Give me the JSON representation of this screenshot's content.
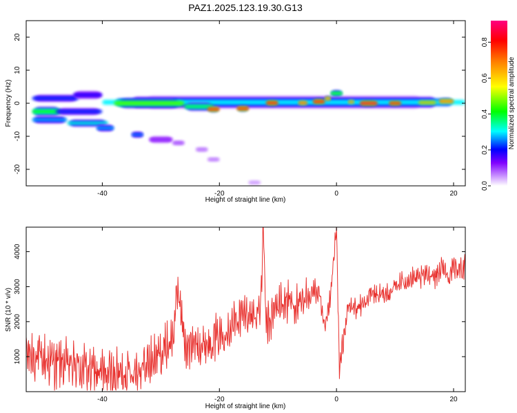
{
  "figure": {
    "title": "PAZ1.2025.123.19.30.G13"
  },
  "chart_data": [
    {
      "type": "heatmap",
      "title": "PAZ1.2025.123.19.30.G13",
      "xlabel": "Height of straight line (km)",
      "ylabel": "Frequency (Hz)",
      "xlim": [
        -53,
        22
      ],
      "ylim": [
        -25,
        25
      ],
      "x_ticks": [
        "-40",
        "-20",
        "0",
        "20"
      ],
      "x_tick_values": [
        -40,
        -20,
        0,
        20
      ],
      "y_ticks": [
        "20",
        "10",
        "0",
        "-10",
        "-20"
      ],
      "y_tick_values": [
        20,
        10,
        0,
        -10,
        -20
      ],
      "colorbar": {
        "label": "Normalized spectral amplitude",
        "range": [
          0,
          0.92
        ],
        "ticks": [
          "0.0",
          "0.2",
          "0.4",
          "0.6",
          "0.8"
        ],
        "tick_values": [
          0.0,
          0.2,
          0.4,
          0.6,
          0.8
        ],
        "colormap": [
          "#ffffff",
          "#8000ff",
          "#0000ff",
          "#00ffff",
          "#00ff00",
          "#ffff00",
          "#ff8000",
          "#ff0000",
          "#ff0080"
        ]
      },
      "blobs": [
        {
          "x0": -40,
          "x1": 22,
          "y": 0.3,
          "h": 1.8,
          "a": 0.3
        },
        {
          "x0": -38,
          "x1": -26,
          "y": 0.0,
          "h": 1.4,
          "a": 0.45
        },
        {
          "x0": -26,
          "x1": -21,
          "y": -1.0,
          "h": 1.2,
          "a": 0.38
        },
        {
          "x0": -22,
          "x1": -20,
          "y": -1.8,
          "h": 0.8,
          "a": 0.8
        },
        {
          "x0": -17,
          "x1": -15,
          "y": -1.6,
          "h": 0.8,
          "a": 0.8
        },
        {
          "x0": -12,
          "x1": -10,
          "y": 0.1,
          "h": 0.8,
          "a": 0.82
        },
        {
          "x0": -6.5,
          "x1": -5.0,
          "y": 0.1,
          "h": 0.7,
          "a": 0.75
        },
        {
          "x0": -4.0,
          "x1": -2.0,
          "y": 0.5,
          "h": 0.8,
          "a": 0.82
        },
        {
          "x0": -2.0,
          "x1": -1.0,
          "y": 1.4,
          "h": 0.7,
          "a": 0.7
        },
        {
          "x0": 2.0,
          "x1": 3.0,
          "y": 0.4,
          "h": 0.6,
          "a": 0.7
        },
        {
          "x0": 4.0,
          "x1": 7.0,
          "y": 0.0,
          "h": 0.8,
          "a": 0.85
        },
        {
          "x0": 9.0,
          "x1": 11.0,
          "y": 0.0,
          "h": 0.7,
          "a": 0.82
        },
        {
          "x0": 14.0,
          "x1": 17.0,
          "y": 0.2,
          "h": 0.7,
          "a": 0.62
        },
        {
          "x0": 17.5,
          "x1": 20.0,
          "y": 0.6,
          "h": 0.8,
          "a": 0.72
        },
        {
          "x0": -1.0,
          "x1": 1.0,
          "y": 3.0,
          "h": 0.9,
          "a": 0.42
        },
        {
          "x0": -52,
          "x1": -44,
          "y": 1.5,
          "h": 1.0,
          "a": 0.22
        },
        {
          "x0": -52,
          "x1": -47,
          "y": -2.5,
          "h": 1.4,
          "a": 0.4
        },
        {
          "x0": -48,
          "x1": -40,
          "y": -2.5,
          "h": 1.0,
          "a": 0.22
        },
        {
          "x0": -52,
          "x1": -46,
          "y": -5.0,
          "h": 1.0,
          "a": 0.28
        },
        {
          "x0": -46,
          "x1": -39,
          "y": -6.0,
          "h": 1.0,
          "a": 0.32
        },
        {
          "x0": -41,
          "x1": -38,
          "y": -7.5,
          "h": 0.9,
          "a": 0.28
        },
        {
          "x0": -35,
          "x1": -33,
          "y": -9.5,
          "h": 0.8,
          "a": 0.26
        },
        {
          "x0": -45,
          "x1": -40,
          "y": 2.5,
          "h": 1.2,
          "a": 0.18
        },
        {
          "x0": -32,
          "x1": -28,
          "y": -11.0,
          "h": 1.0,
          "a": 0.12
        },
        {
          "x0": -28,
          "x1": -26,
          "y": -12.0,
          "h": 0.6,
          "a": 0.1
        },
        {
          "x0": -24,
          "x1": -22,
          "y": -14.0,
          "h": 0.6,
          "a": 0.08
        },
        {
          "x0": -22,
          "x1": -20,
          "y": -17.0,
          "h": 0.5,
          "a": 0.08
        },
        {
          "x0": -15,
          "x1": -13,
          "y": -24.0,
          "h": 0.5,
          "a": 0.06
        }
      ]
    },
    {
      "type": "line",
      "xlabel": "Height of straight line (km)",
      "ylabel": "SNR (10 * v/v)",
      "xlim": [
        -53,
        22
      ],
      "ylim": [
        0,
        4700
      ],
      "x_ticks": [
        "-40",
        "-20",
        "0",
        "20"
      ],
      "x_tick_values": [
        -40,
        -20,
        0,
        20
      ],
      "y_ticks": [
        "1000",
        "2000",
        "3000",
        "4000"
      ],
      "y_tick_values": [
        1000,
        2000,
        3000,
        4000
      ],
      "line_color": "#e8312e",
      "series": [
        {
          "x": [
            -53,
            -50,
            -47,
            -44,
            -41,
            -38,
            -35,
            -32,
            -30,
            -28,
            -27,
            -26,
            -25,
            -24,
            -23,
            -22,
            -20,
            -18,
            -16,
            -14,
            -13,
            -12.5,
            -12,
            -10,
            -8,
            -6,
            -4,
            -3,
            -2,
            -1,
            0,
            0.5,
            1,
            2,
            4,
            6,
            8,
            10,
            12,
            14,
            16,
            17,
            18,
            19,
            20,
            21,
            22
          ],
          "y": [
            1100,
            900,
            800,
            700,
            550,
            450,
            600,
            800,
            1100,
            1500,
            3000,
            1400,
            1200,
            1500,
            1300,
            1400,
            1600,
            1900,
            2200,
            2200,
            2300,
            4600,
            1800,
            2500,
            2600,
            2400,
            2900,
            2800,
            1700,
            2700,
            4700,
            500,
            1300,
            2400,
            2400,
            2800,
            2700,
            3000,
            3200,
            3200,
            3400,
            3300,
            3600,
            3300,
            3500,
            3500,
            3600
          ]
        }
      ]
    }
  ]
}
